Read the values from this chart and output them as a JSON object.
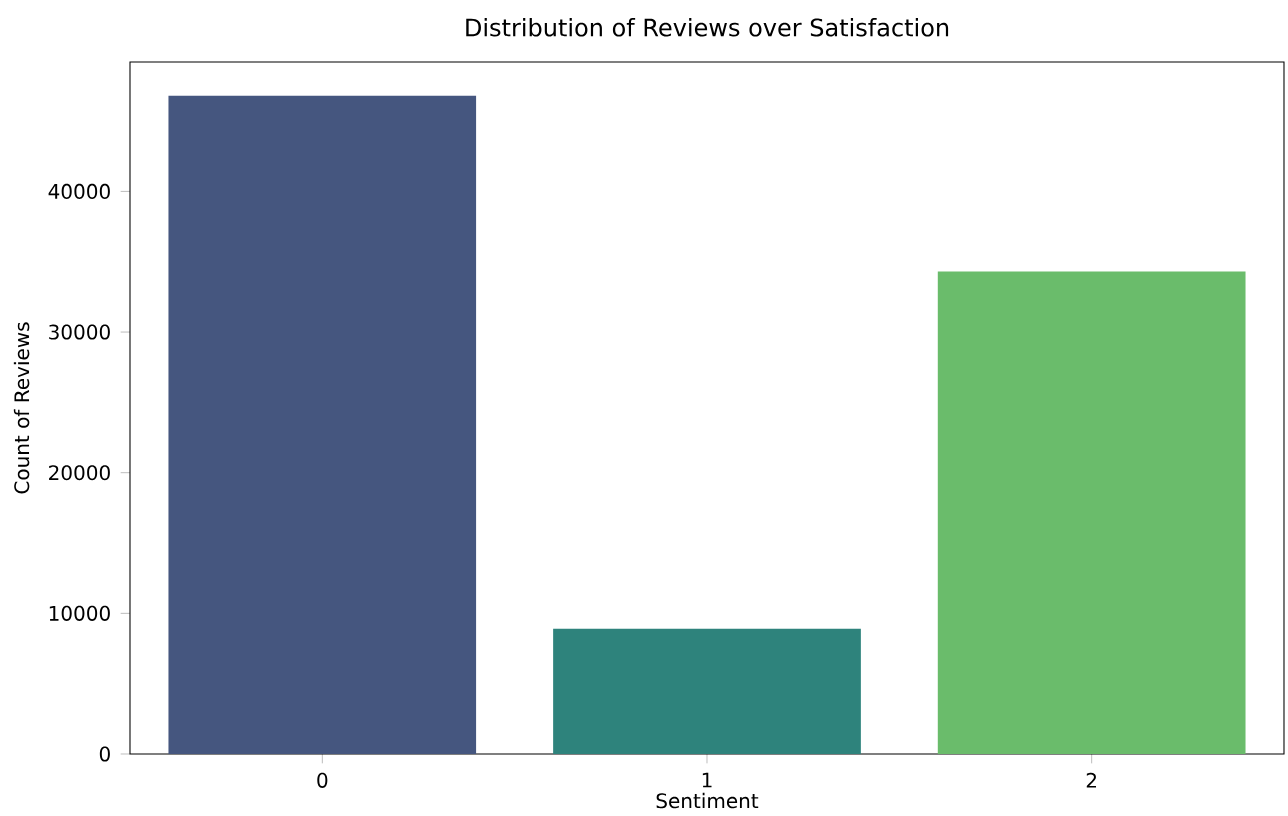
{
  "chart_data": {
    "type": "bar",
    "title": "Distribution of Reviews over Satisfaction",
    "xlabel": "Sentiment",
    "ylabel": "Count of Reviews",
    "categories": [
      "0",
      "1",
      "2"
    ],
    "values": [
      46800,
      8900,
      34300
    ],
    "colors": [
      "#45567f",
      "#2e837c",
      "#6abc6b"
    ],
    "ylim": [
      0,
      49200
    ],
    "yticks": [
      0,
      10000,
      20000,
      30000,
      40000
    ],
    "grid": false
  }
}
